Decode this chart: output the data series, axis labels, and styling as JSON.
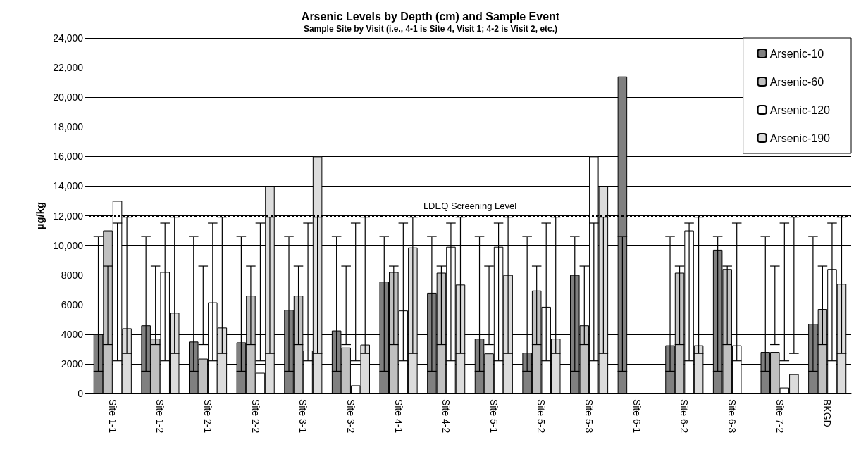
{
  "chart_data": {
    "type": "bar",
    "title": "Arsenic Levels by Depth (cm) and Sample Event",
    "subtitle": "Sample Site by Visit (i.e., 4-1 is Site 4, Visit 1; 4-2 is Visit 2, etc.)",
    "ylabel": "µg/kg",
    "categories": [
      "Site 1-1",
      "Site 1-2",
      "Site 2-1",
      "Site 2-2",
      "Site 3-1",
      "Site 3-2",
      "Site 4-1",
      "Site 4-2",
      "Site 5-1",
      "Site 5-2",
      "Site 5-3",
      "Site 6-1",
      "Site 6-2",
      "Site 6-3",
      "Site 7-2",
      "BKGD"
    ],
    "series": [
      {
        "name": "Arsenic-10",
        "color": "#808080",
        "values": [
          4000,
          4600,
          3500,
          3450,
          5650,
          4250,
          7550,
          6800,
          3700,
          2750,
          8000,
          21400,
          3250,
          9700,
          2800,
          4700
        ],
        "errors": [
          [
            1500,
            10600
          ],
          [
            1500,
            10600
          ],
          [
            1500,
            10600
          ],
          [
            1500,
            10600
          ],
          [
            1500,
            10600
          ],
          [
            1500,
            10600
          ],
          [
            1500,
            10600
          ],
          [
            1500,
            10600
          ],
          [
            1500,
            10600
          ],
          [
            1500,
            10600
          ],
          [
            1500,
            10600
          ],
          [
            1500,
            10600
          ],
          [
            1500,
            10600
          ],
          [
            1500,
            10600
          ],
          [
            1500,
            10600
          ],
          [
            1500,
            10600
          ]
        ]
      },
      {
        "name": "Arsenic-60",
        "color": "#c0c0c0",
        "values": [
          11000,
          3700,
          2350,
          6600,
          6600,
          3100,
          8200,
          8150,
          2700,
          6950,
          4600,
          null,
          8150,
          8400,
          2800,
          5700
        ],
        "errors": [
          [
            3300,
            8600
          ],
          [
            3300,
            8600
          ],
          [
            3300,
            8600
          ],
          [
            3300,
            8600
          ],
          [
            3300,
            8600
          ],
          [
            3300,
            8600
          ],
          [
            3300,
            8600
          ],
          [
            3300,
            8600
          ],
          [
            3300,
            8600
          ],
          [
            3300,
            8600
          ],
          [
            3300,
            8600
          ],
          null,
          [
            3300,
            8600
          ],
          [
            3300,
            8600
          ],
          [
            3300,
            8600
          ],
          [
            3300,
            8600
          ]
        ]
      },
      {
        "name": "Arsenic-120",
        "color": "#ffffff",
        "values": [
          13000,
          8200,
          6150,
          1400,
          2900,
          550,
          5600,
          9900,
          9900,
          5850,
          16000,
          null,
          11000,
          3250,
          400,
          8400
        ],
        "errors": [
          [
            2200,
            11500
          ],
          [
            2200,
            11500
          ],
          [
            2200,
            11500
          ],
          [
            2200,
            11500
          ],
          [
            2200,
            11500
          ],
          [
            2200,
            11500
          ],
          [
            2200,
            11500
          ],
          [
            2200,
            11500
          ],
          [
            2200,
            11500
          ],
          [
            2200,
            11500
          ],
          [
            2200,
            11500
          ],
          null,
          [
            2200,
            11500
          ],
          [
            2200,
            11500
          ],
          [
            2200,
            11500
          ],
          [
            2200,
            11500
          ]
        ]
      },
      {
        "name": "Arsenic-190",
        "color": "#dcdcdc",
        "values": [
          4400,
          5450,
          4450,
          14000,
          16000,
          3300,
          9850,
          7350,
          8000,
          3700,
          14000,
          null,
          3250,
          null,
          1300,
          7400
        ],
        "errors": [
          [
            2700,
            11900
          ],
          [
            2700,
            11900
          ],
          [
            2700,
            11900
          ],
          [
            2700,
            11900
          ],
          [
            2700,
            11900
          ],
          [
            2700,
            11900
          ],
          [
            2700,
            11900
          ],
          [
            2700,
            11900
          ],
          [
            2700,
            11900
          ],
          [
            2700,
            11900
          ],
          [
            2700,
            11900
          ],
          null,
          [
            2700,
            11900
          ],
          null,
          [
            2700,
            11900
          ],
          [
            2700,
            11900
          ]
        ]
      }
    ],
    "ylim": [
      0,
      24000
    ],
    "yticks": [
      0,
      2000,
      4000,
      6000,
      8000,
      {
        "value": 10000,
        "label": "10,000"
      },
      {
        "value": 12000,
        "label": "12,000"
      },
      {
        "value": 14000,
        "label": "14,000"
      },
      {
        "value": 16000,
        "label": "16,000"
      },
      {
        "value": 18000,
        "label": "18,000"
      },
      {
        "value": 20000,
        "label": "20,000"
      },
      {
        "value": 22000,
        "label": "22,000"
      },
      {
        "value": 24000,
        "label": "24,000"
      }
    ],
    "ref_lines": [
      {
        "axis": "y",
        "value": 12000,
        "label": "LDEQ Screening Level",
        "color": "#000000",
        "line_style": "dotted"
      }
    ],
    "grid": "y",
    "legend": "top right"
  }
}
